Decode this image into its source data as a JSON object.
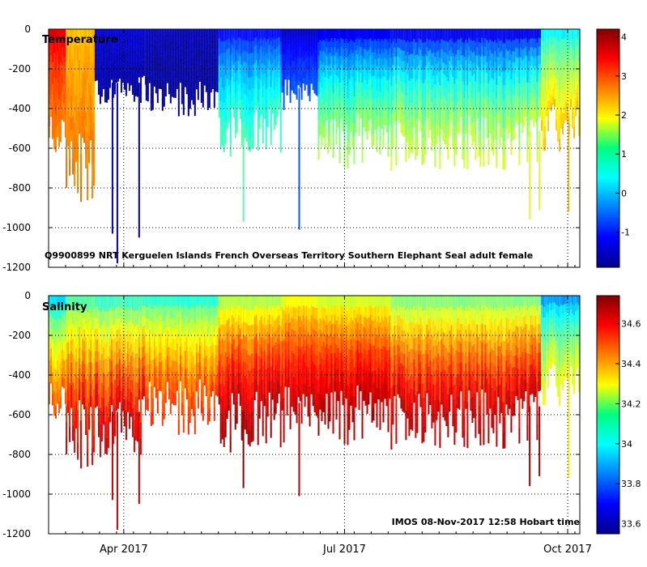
{
  "chart_data": [
    {
      "type": "heatmap",
      "title": "Temperature",
      "annotation": "Q9900899 NRT Kerguelen Islands French Overseas Territory Southern Elephant Seal adult female",
      "ylim": [
        -1200,
        0
      ],
      "yticks": [
        0,
        -200,
        -400,
        -600,
        -800,
        -1000,
        -1200
      ],
      "ytick_labels": [
        "0",
        "-200",
        "-400",
        "-600",
        "-800",
        "-1000",
        "-1200"
      ],
      "x_range": [
        "2017-03-01",
        "2017-10-06"
      ],
      "xticks": [
        {
          "label": "Apr 2017",
          "date": "2017-04-01"
        },
        {
          "label": "Jul 2017",
          "date": "2017-07-01"
        },
        {
          "label": "Oct 2017",
          "date": "2017-10-01"
        }
      ],
      "grid": true,
      "colorbar": {
        "range": [
          -1.9,
          4.2
        ],
        "ticks": [
          4,
          3,
          2,
          1,
          0,
          -1
        ],
        "tick_labels": [
          "4",
          "3",
          "2",
          "1",
          "0",
          "-1"
        ],
        "colormap": "jet"
      },
      "profile_segments": [
        {
          "start": "2017-03-01",
          "end": "2017-03-08",
          "surface": 3.8,
          "deep": 2.6,
          "max_depth": 520
        },
        {
          "start": "2017-03-08",
          "end": "2017-03-20",
          "surface": 2.2,
          "deep": 2.7,
          "max_depth": 700
        },
        {
          "start": "2017-03-20",
          "end": "2017-04-10",
          "surface": -1.3,
          "deep": -1.6,
          "max_depth": 300
        },
        {
          "start": "2017-04-10",
          "end": "2017-05-10",
          "surface": -1.6,
          "deep": -1.8,
          "max_depth": 350
        },
        {
          "start": "2017-05-10",
          "end": "2017-06-05",
          "surface": -1.5,
          "deep": 0.9,
          "max_depth": 520
        },
        {
          "start": "2017-06-05",
          "end": "2017-06-20",
          "surface": -1.7,
          "deep": -0.6,
          "max_depth": 330
        },
        {
          "start": "2017-06-20",
          "end": "2017-07-20",
          "surface": -1.7,
          "deep": 1.5,
          "max_depth": 560
        },
        {
          "start": "2017-07-20",
          "end": "2017-09-20",
          "surface": -1.7,
          "deep": 1.7,
          "max_depth": 570
        },
        {
          "start": "2017-09-20",
          "end": "2017-10-06",
          "surface": 0.0,
          "deep": 2.3,
          "max_depth": 500
        }
      ]
    },
    {
      "type": "heatmap",
      "title": "Salinity",
      "annotation": "IMOS 08-Nov-2017 12:58 Hobart time",
      "ylim": [
        -1200,
        0
      ],
      "yticks": [
        0,
        -200,
        -400,
        -600,
        -800,
        -1000,
        -1200
      ],
      "ytick_labels": [
        "0",
        "-200",
        "-400",
        "-600",
        "-800",
        "-1000",
        "-1200"
      ],
      "x_range": [
        "2017-03-01",
        "2017-10-06"
      ],
      "xticks": [
        {
          "label": "Apr 2017",
          "date": "2017-04-01"
        },
        {
          "label": "Jul 2017",
          "date": "2017-07-01"
        },
        {
          "label": "Oct 2017",
          "date": "2017-10-01"
        }
      ],
      "grid": true,
      "colorbar": {
        "range": [
          33.55,
          34.74
        ],
        "ticks": [
          34.6,
          34.4,
          34.2,
          34,
          33.8,
          33.6
        ],
        "tick_labels": [
          "34.6",
          "34.4",
          "34.2",
          "34",
          "33.8",
          "33.6"
        ],
        "colormap": "jet"
      },
      "profile_segments": [
        {
          "start": "2017-03-01",
          "end": "2017-03-08",
          "surface": 33.85,
          "deep": 34.5,
          "max_depth": 520
        },
        {
          "start": "2017-03-08",
          "end": "2017-03-20",
          "surface": 34.0,
          "deep": 34.62,
          "max_depth": 700
        },
        {
          "start": "2017-03-20",
          "end": "2017-04-10",
          "surface": 33.95,
          "deep": 34.66,
          "max_depth": 650
        },
        {
          "start": "2017-04-10",
          "end": "2017-05-10",
          "surface": 33.95,
          "deep": 34.55,
          "max_depth": 560
        },
        {
          "start": "2017-05-10",
          "end": "2017-06-05",
          "surface": 34.1,
          "deep": 34.72,
          "max_depth": 640
        },
        {
          "start": "2017-06-05",
          "end": "2017-06-20",
          "surface": 34.2,
          "deep": 34.68,
          "max_depth": 600
        },
        {
          "start": "2017-06-20",
          "end": "2017-07-20",
          "surface": 34.15,
          "deep": 34.7,
          "max_depth": 600
        },
        {
          "start": "2017-07-20",
          "end": "2017-09-20",
          "surface": 34.05,
          "deep": 34.68,
          "max_depth": 620
        },
        {
          "start": "2017-09-20",
          "end": "2017-10-06",
          "surface": 33.8,
          "deep": 34.3,
          "max_depth": 450
        }
      ]
    }
  ],
  "deep_dives": [
    {
      "date": "2017-03-14",
      "depth": 810
    },
    {
      "date": "2017-03-27",
      "depth": 1030
    },
    {
      "date": "2017-03-29",
      "depth": 1180
    },
    {
      "date": "2017-04-07",
      "depth": 1050
    },
    {
      "date": "2017-05-20",
      "depth": 970
    },
    {
      "date": "2017-06-12",
      "depth": 1010
    },
    {
      "date": "2017-09-15",
      "depth": 960
    },
    {
      "date": "2017-09-19",
      "depth": 910
    },
    {
      "date": "2017-10-01",
      "depth": 920
    }
  ]
}
